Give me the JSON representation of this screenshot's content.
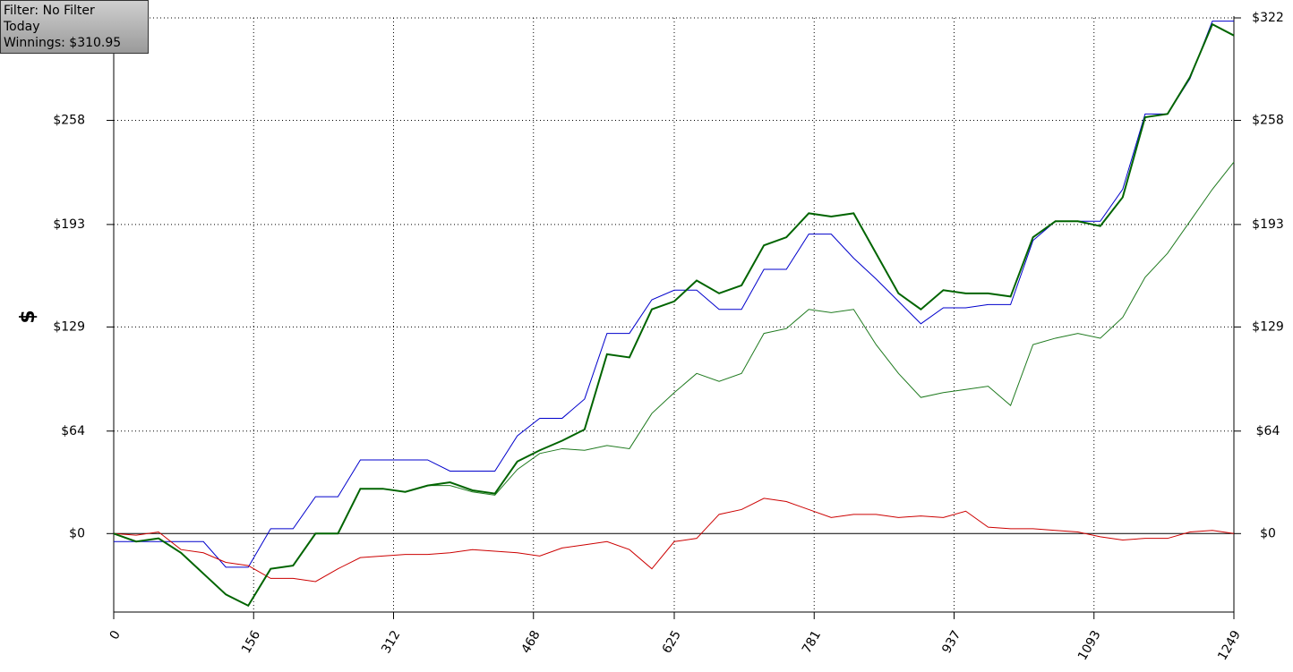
{
  "info": [
    "Filter: No Filter",
    "Today",
    "Winnings: $310.95"
  ],
  "chart_data": {
    "type": "line",
    "ylabel": "$",
    "x": [
      0,
      25,
      50,
      75,
      100,
      125,
      150,
      175,
      200,
      225,
      250,
      275,
      300,
      325,
      350,
      375,
      400,
      425,
      450,
      475,
      500,
      525,
      550,
      575,
      600,
      625,
      650,
      675,
      700,
      725,
      750,
      775,
      800,
      825,
      850,
      875,
      900,
      925,
      950,
      975,
      1000,
      1025,
      1050,
      1075,
      1100,
      1125,
      1150,
      1175,
      1200,
      1225,
      1249
    ],
    "series": [
      {
        "color": "#0000cc",
        "width": 1,
        "values": [
          -5,
          -5,
          -5,
          -5,
          -5,
          -21,
          -21,
          3,
          3,
          23,
          23,
          46,
          46,
          46,
          46,
          39,
          39,
          39,
          61,
          72,
          72,
          84,
          125,
          125,
          146,
          152,
          152,
          140,
          140,
          165,
          165,
          187,
          187,
          172,
          159,
          145,
          131,
          141,
          141,
          143,
          143,
          183,
          195,
          195,
          195,
          215,
          262,
          262,
          284,
          320,
          320
        ]
      },
      {
        "color": "#1f7a1f",
        "width": 1,
        "values": [
          0,
          -5,
          -3,
          -12,
          -25,
          -38,
          -45,
          -22,
          -20,
          0,
          0,
          28,
          28,
          26,
          30,
          30,
          26,
          24,
          40,
          50,
          53,
          52,
          55,
          53,
          75,
          88,
          100,
          95,
          100,
          125,
          128,
          140,
          138,
          140,
          118,
          100,
          85,
          88,
          90,
          92,
          80,
          118,
          122,
          125,
          122,
          135,
          160,
          175,
          195,
          215,
          232
        ]
      },
      {
        "color": "#cc0000",
        "width": 1,
        "values": [
          0,
          -1,
          1,
          -10,
          -12,
          -18,
          -20,
          -28,
          -28,
          -30,
          -22,
          -15,
          -14,
          -13,
          -13,
          -12,
          -10,
          -11,
          -12,
          -14,
          -9,
          -7,
          -5,
          -10,
          -22,
          -5,
          -3,
          12,
          15,
          22,
          20,
          15,
          10,
          12,
          12,
          10,
          11,
          10,
          14,
          4,
          3,
          3,
          2,
          1,
          -2,
          -4,
          -3,
          -3,
          1,
          2,
          0
        ]
      },
      {
        "color": "#006400",
        "width": 2,
        "values": [
          0,
          -5,
          -3,
          -12,
          -25,
          -38,
          -45,
          -22,
          -20,
          0,
          0,
          28,
          28,
          26,
          30,
          32,
          27,
          25,
          45,
          52,
          58,
          65,
          112,
          110,
          140,
          145,
          158,
          150,
          155,
          180,
          185,
          200,
          198,
          200,
          175,
          150,
          140,
          152,
          150,
          150,
          148,
          185,
          195,
          195,
          192,
          210,
          260,
          262,
          285,
          318,
          311
        ]
      }
    ],
    "xlim": [
      0,
      1249
    ],
    "xticks": [
      0,
      156,
      312,
      468,
      625,
      781,
      937,
      1093,
      1249
    ],
    "ylim": [
      -49,
      322
    ],
    "yticks": [
      {
        "value": 0,
        "label": "$0"
      },
      {
        "value": 64,
        "label": "$64"
      },
      {
        "value": 129,
        "label": "$129"
      },
      {
        "value": 193,
        "label": "$193"
      },
      {
        "value": 258,
        "label": "$258"
      },
      {
        "value": 322,
        "label": "$322"
      }
    ],
    "grid": true
  }
}
